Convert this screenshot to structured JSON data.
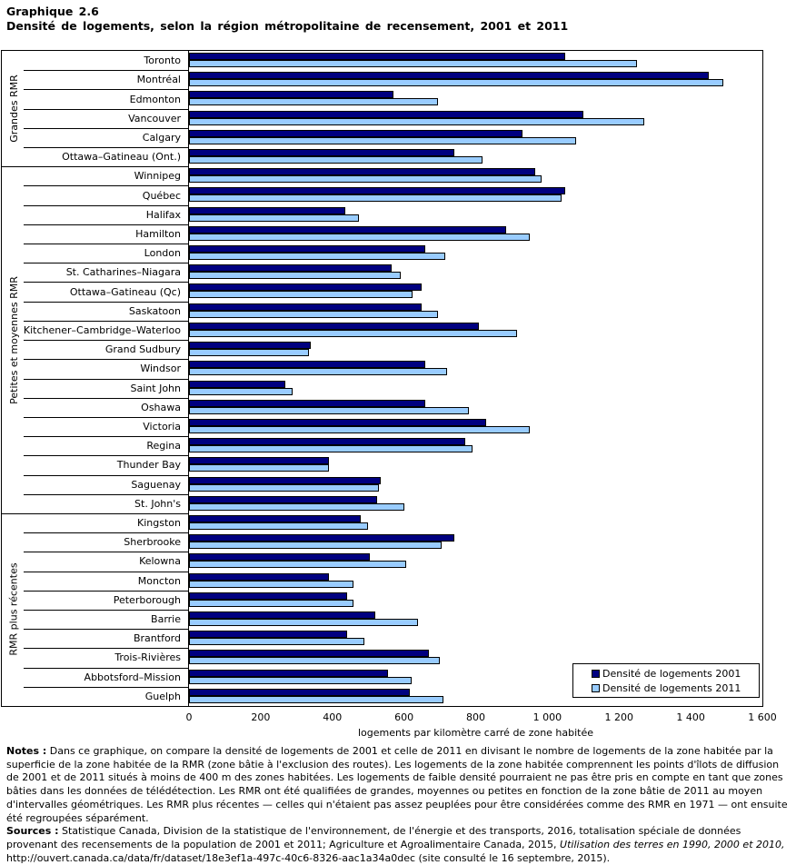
{
  "title": {
    "line1": "Graphique 2.6",
    "line2": "Densité de logements, selon la région métropolitaine de recensement, 2001 et 2011"
  },
  "chart_data": {
    "type": "bar",
    "orientation": "horizontal",
    "title": "Densité de logements, selon la région métropolitaine de recensement, 2001 et 2011",
    "xlabel": "logements par kilomètre carré de zone habitée",
    "xlim": [
      0,
      1600
    ],
    "xticks": [
      0,
      200,
      400,
      600,
      800,
      1000,
      1200,
      1400,
      1600
    ],
    "xtick_labels": [
      "0",
      "200",
      "400",
      "600",
      "800",
      "1 000",
      "1 200",
      "1 400",
      "1 600"
    ],
    "grid": false,
    "legend_position": "bottom-right-inside",
    "series_colors": {
      "v2001": "#000080",
      "v2011": "#99CCFF"
    },
    "legend": [
      {
        "name": "Densité de logements 2001",
        "color": "#000080"
      },
      {
        "name": "Densité de logements 2011",
        "color": "#99CCFF"
      }
    ],
    "groups": [
      {
        "label": "Grandes RMR",
        "cities": [
          {
            "name": "Toronto",
            "v2001": 1050,
            "v2011": 1250
          },
          {
            "name": "Montréal",
            "v2001": 1450,
            "v2011": 1490
          },
          {
            "name": "Edmonton",
            "v2001": 570,
            "v2011": 695
          },
          {
            "name": "Vancouver",
            "v2001": 1100,
            "v2011": 1270
          },
          {
            "name": "Calgary",
            "v2001": 930,
            "v2011": 1080
          },
          {
            "name": "Ottawa–Gatineau (Ont.)",
            "v2001": 740,
            "v2011": 820
          }
        ]
      },
      {
        "label": "Petites et moyennes RMR",
        "cities": [
          {
            "name": "Winnipeg",
            "v2001": 965,
            "v2011": 985
          },
          {
            "name": "Québec",
            "v2001": 1050,
            "v2011": 1040
          },
          {
            "name": "Halifax",
            "v2001": 435,
            "v2011": 475
          },
          {
            "name": "Hamilton",
            "v2001": 885,
            "v2011": 950
          },
          {
            "name": "London",
            "v2001": 660,
            "v2011": 715
          },
          {
            "name": "St. Catharines–Niagara",
            "v2001": 565,
            "v2011": 590
          },
          {
            "name": "Ottawa–Gatineau (Qc)",
            "v2001": 650,
            "v2011": 625
          },
          {
            "name": "Saskatoon",
            "v2001": 650,
            "v2011": 695
          },
          {
            "name": "Kitchener–Cambridge–Waterloo",
            "v2001": 810,
            "v2011": 915
          },
          {
            "name": "Grand Sudbury",
            "v2001": 340,
            "v2011": 335
          },
          {
            "name": "Windsor",
            "v2001": 660,
            "v2011": 720
          },
          {
            "name": "Saint John",
            "v2001": 270,
            "v2011": 290
          },
          {
            "name": "Oshawa",
            "v2001": 660,
            "v2011": 780
          },
          {
            "name": "Victoria",
            "v2001": 830,
            "v2011": 950
          },
          {
            "name": "Regina",
            "v2001": 770,
            "v2011": 790
          },
          {
            "name": "Thunder Bay",
            "v2001": 390,
            "v2011": 390
          },
          {
            "name": "Saguenay",
            "v2001": 535,
            "v2011": 530
          },
          {
            "name": "St. John's",
            "v2001": 525,
            "v2011": 600
          }
        ]
      },
      {
        "label": "RMR plus récentes",
        "cities": [
          {
            "name": "Kingston",
            "v2001": 480,
            "v2011": 500
          },
          {
            "name": "Sherbrooke",
            "v2001": 740,
            "v2011": 705
          },
          {
            "name": "Kelowna",
            "v2001": 505,
            "v2011": 605
          },
          {
            "name": "Moncton",
            "v2001": 390,
            "v2011": 460
          },
          {
            "name": "Peterborough",
            "v2001": 440,
            "v2011": 460
          },
          {
            "name": "Barrie",
            "v2001": 520,
            "v2011": 640
          },
          {
            "name": "Brantford",
            "v2001": 440,
            "v2011": 490
          },
          {
            "name": "Trois-Rivières",
            "v2001": 670,
            "v2011": 700
          },
          {
            "name": "Abbotsford–Mission",
            "v2001": 555,
            "v2011": 620
          },
          {
            "name": "Guelph",
            "v2001": 615,
            "v2011": 710
          }
        ]
      }
    ]
  },
  "notes": {
    "notes_label": "Notes :",
    "notes_text": " Dans ce graphique, on compare la densité de logements de 2001 et celle de 2011 en divisant le nombre de logements de la zone habitée par la superficie de la zone habitée de la RMR (zone bâtie à l'exclusion des routes). Les logements de la zone habitée comprennent les points d'îlots de diffusion de 2001 et de 2011 situés à moins de 400 m des zones habitées. Les logements de faible densité pourraient ne pas être pris en compte en tant que zones bâties dans les données de télédétection. Les RMR ont été qualifiées de grandes, moyennes ou petites en fonction de la zone bâtie de 2011 au moyen d'intervalles géométriques. Les RMR plus récentes — celles qui n'étaient pas assez peuplées pour être considérées comme des RMR en 1971 — ont ensuite été regroupées séparément.",
    "sources_label": "Sources :",
    "sources_text_1": " Statistique Canada, Division de la statistique de l'environnement, de l'énergie et des transports, 2016, totalisation spéciale de données provenant des recensements de la population de 2001 et 2011; Agriculture et Agroalimentaire Canada, 2015, ",
    "sources_italic": "Utilisation des terres en 1990, 2000 et 2010,",
    "sources_text_2": " http://ouvert.canada.ca/data/fr/dataset/18e3ef1a-497c-40c6-8326-aac1a34a0dec (site consulté le 16 septembre, 2015)."
  },
  "colors": {
    "series_2001": "#000080",
    "series_2011": "#99CCFF",
    "border": "#000000",
    "background": "#FFFFFF"
  }
}
